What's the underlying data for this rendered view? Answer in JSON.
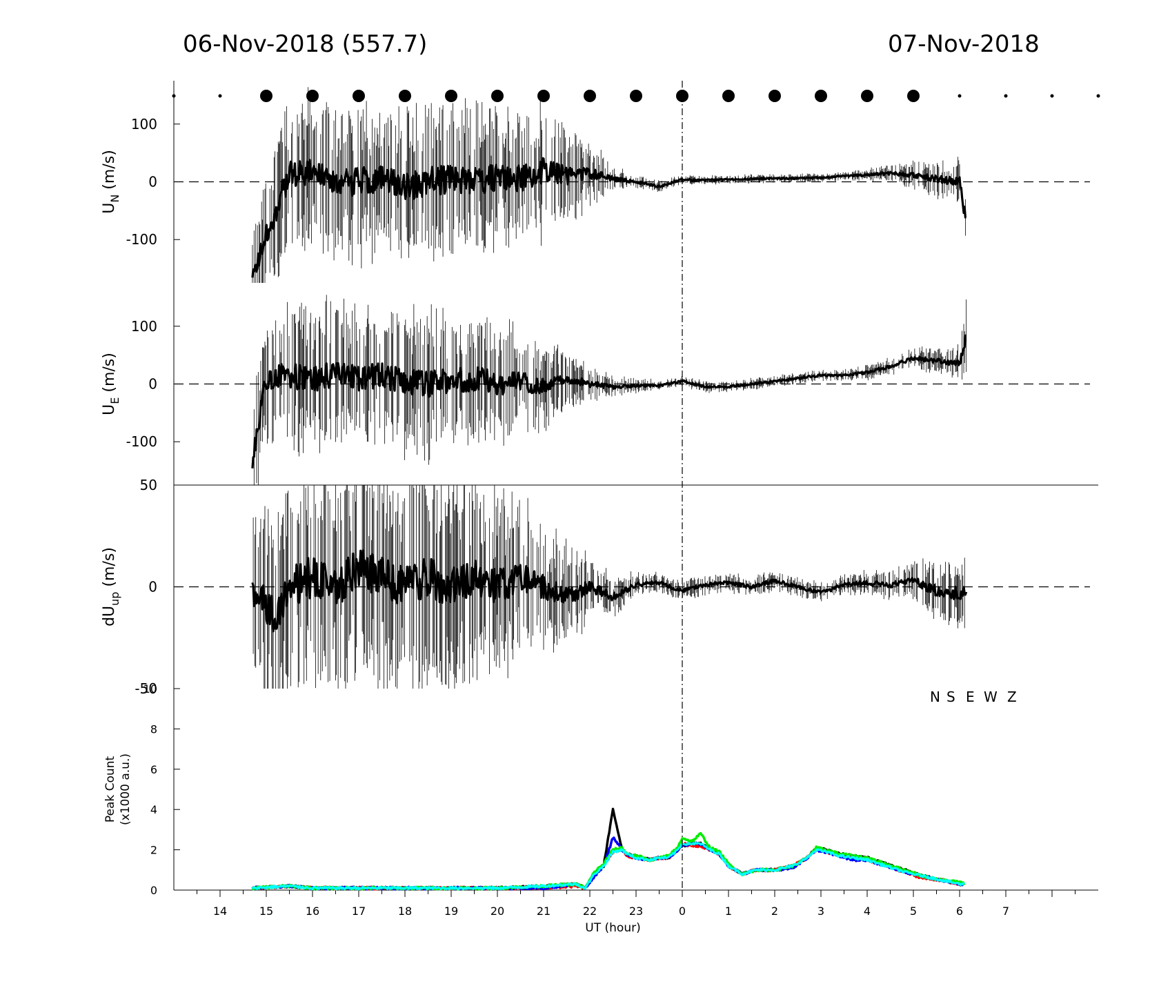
{
  "header": {
    "left_date": "06-Nov-2018 (557.7)",
    "right_date": "07-Nov-2018"
  },
  "chart_data": [
    {
      "type": "line",
      "panel": "un",
      "ylabel": "U",
      "ylabel_sub": "N",
      "ylabel_unit": " (m/s)",
      "yticks": [
        100,
        0,
        -100
      ],
      "ylim": [
        -175,
        175
      ],
      "x_range_hours": [
        -11,
        9
      ],
      "data_x_range": [
        -9.3,
        6.15
      ],
      "zero_line": true,
      "series": [
        {
          "x": [
            -9.3,
            -9.0,
            -8.5,
            -8.0,
            -7.5,
            -7.0,
            -6.5,
            -6.0,
            -5.5,
            -5.0,
            -4.5,
            -4.0,
            -3.5,
            -3.0,
            -2.5,
            -2.0,
            -1.5,
            -1.0,
            -0.5,
            0.0,
            0.5,
            1.0,
            1.5,
            2.0,
            2.5,
            3.0,
            3.5,
            4.0,
            4.5,
            5.0,
            5.5,
            6.0,
            6.15
          ],
          "y": [
            -170,
            -90,
            10,
            15,
            -5,
            0,
            5,
            -10,
            0,
            5,
            0,
            10,
            5,
            20,
            10,
            15,
            5,
            0,
            -8,
            4,
            3,
            4,
            5,
            6,
            6,
            7,
            10,
            12,
            15,
            12,
            5,
            0,
            -75
          ],
          "error_amplitude": [
            60,
            90,
            110,
            110,
            110,
            110,
            110,
            110,
            110,
            110,
            110,
            110,
            105,
            95,
            75,
            45,
            20,
            10,
            8,
            6,
            6,
            6,
            6,
            6,
            6,
            6,
            6,
            8,
            12,
            20,
            25,
            35,
            60
          ]
        }
      ],
      "markers": {
        "hours": [
          -11,
          -10,
          -9,
          -8,
          -7,
          -6,
          -5,
          -4,
          -3,
          -2,
          -1,
          0,
          1,
          2,
          3,
          4,
          5,
          6,
          7,
          8,
          9
        ],
        "size": [
          "small",
          "small",
          "large",
          "large",
          "large",
          "large",
          "large",
          "large",
          "large",
          "large",
          "large",
          "large",
          "large",
          "large",
          "large",
          "large",
          "large",
          "small",
          "small",
          "small",
          "small"
        ]
      }
    },
    {
      "type": "line",
      "panel": "ue",
      "ylabel": "U",
      "ylabel_sub": "E",
      "ylabel_unit": " (m/s)",
      "yticks": [
        100,
        0,
        -100
      ],
      "ylim": [
        -175,
        175
      ],
      "x_range_hours": [
        -11,
        9
      ],
      "data_x_range": [
        -9.3,
        6.15
      ],
      "zero_line": true,
      "series": [
        {
          "x": [
            -9.3,
            -9.0,
            -8.5,
            -8.0,
            -7.5,
            -7.0,
            -6.5,
            -6.0,
            -5.5,
            -5.0,
            -4.5,
            -4.0,
            -3.5,
            -3.0,
            -2.5,
            -2.0,
            -1.5,
            -1.0,
            -0.5,
            0.0,
            0.5,
            1.0,
            1.5,
            2.0,
            2.5,
            3.0,
            3.5,
            4.0,
            4.5,
            5.0,
            5.5,
            6.0,
            6.15
          ],
          "y": [
            -130,
            10,
            15,
            5,
            20,
            10,
            15,
            5,
            0,
            5,
            10,
            0,
            5,
            -5,
            10,
            0,
            -5,
            -3,
            -3,
            5,
            -5,
            -5,
            0,
            5,
            10,
            15,
            15,
            20,
            30,
            45,
            40,
            35,
            90
          ],
          "error_amplitude": [
            80,
            90,
            100,
            100,
            100,
            100,
            100,
            100,
            100,
            95,
            95,
            90,
            80,
            60,
            40,
            25,
            15,
            10,
            8,
            8,
            8,
            8,
            8,
            8,
            8,
            8,
            8,
            10,
            12,
            15,
            20,
            25,
            60
          ]
        }
      ]
    },
    {
      "type": "line",
      "panel": "dup",
      "ylabel": "dU",
      "ylabel_sub": "up",
      "ylabel_unit": " (m/s)",
      "yticks": [
        50,
        0,
        -50
      ],
      "ylim": [
        -50,
        50
      ],
      "x_range_hours": [
        -11,
        9
      ],
      "data_x_range": [
        -9.3,
        6.15
      ],
      "zero_line": true,
      "series": [
        {
          "x": [
            -9.3,
            -8.8,
            -8.5,
            -8.0,
            -7.5,
            -7.0,
            -6.5,
            -6.0,
            -5.5,
            -5.0,
            -4.5,
            -4.0,
            -3.5,
            -3.0,
            -2.5,
            -2.0,
            -1.5,
            -1.0,
            -0.5,
            0.0,
            0.5,
            1.0,
            1.5,
            2.0,
            2.5,
            3.0,
            3.5,
            4.0,
            4.5,
            5.0,
            5.5,
            6.0,
            6.15
          ],
          "y": [
            0,
            -15,
            0,
            5,
            0,
            10,
            5,
            0,
            5,
            0,
            5,
            0,
            5,
            0,
            -5,
            0,
            -5,
            1,
            2,
            -2,
            1,
            2,
            0,
            3,
            0,
            -3,
            1,
            2,
            1,
            3,
            -2,
            -3,
            0
          ],
          "error_amplitude": [
            40,
            40,
            45,
            45,
            45,
            45,
            45,
            45,
            45,
            45,
            42,
            38,
            32,
            26,
            20,
            14,
            8,
            5,
            4,
            4,
            4,
            4,
            4,
            4,
            4,
            4,
            4,
            5,
            6,
            8,
            12,
            15,
            20
          ]
        }
      ]
    },
    {
      "type": "line",
      "panel": "peak",
      "ylabel": "Peak Count",
      "ylabel2": "(x1000 a.u.)",
      "xlabel": "UT (hour)",
      "yticks": [
        10,
        8,
        6,
        4,
        2,
        0
      ],
      "ylim": [
        0,
        10
      ],
      "x_range_hours": [
        -11,
        9
      ],
      "xtick_labels": [
        "14",
        "15",
        "16",
        "17",
        "18",
        "19",
        "20",
        "21",
        "22",
        "23",
        "0",
        "1",
        "2",
        "3",
        "4",
        "5",
        "6",
        "7"
      ],
      "xtick_hours": [
        -10,
        -9,
        -8,
        -7,
        -6,
        -5,
        -4,
        -3,
        -2,
        -1,
        0,
        1,
        2,
        3,
        4,
        5,
        6,
        7
      ],
      "legend": [
        "N",
        "S",
        "E",
        "W",
        "Z"
      ],
      "legend_colors": [
        "#000000",
        "#ff0000",
        "#0000ff",
        "#00ee00",
        "#00ffff"
      ],
      "x": [
        -9.3,
        -8.5,
        -8.0,
        -7.0,
        -6.0,
        -5.0,
        -4.0,
        -3.0,
        -2.3,
        -2.1,
        -1.9,
        -1.7,
        -1.5,
        -1.3,
        -1.2,
        -1.0,
        -0.7,
        -0.5,
        -0.3,
        -0.1,
        0.0,
        0.2,
        0.4,
        0.6,
        0.8,
        1.0,
        1.3,
        1.6,
        2.0,
        2.4,
        2.7,
        2.9,
        3.1,
        3.4,
        3.7,
        4.0,
        4.4,
        4.8,
        5.2,
        5.6,
        6.0,
        6.1
      ],
      "series": [
        {
          "name": "N",
          "color": "#000000",
          "y": [
            0.1,
            0.2,
            0.1,
            0.1,
            0.1,
            0.1,
            0.1,
            0.2,
            0.3,
            0.1,
            0.8,
            1.2,
            4.0,
            2.0,
            1.8,
            1.7,
            1.5,
            1.6,
            1.6,
            2.0,
            2.2,
            2.3,
            2.3,
            2.0,
            1.8,
            1.2,
            0.8,
            1.0,
            1.0,
            1.2,
            1.6,
            2.1,
            2.0,
            1.8,
            1.7,
            1.6,
            1.3,
            1.0,
            0.7,
            0.5,
            0.3,
            0.3
          ]
        },
        {
          "name": "S",
          "color": "#ff0000",
          "y": [
            0.1,
            0.2,
            0.1,
            0.1,
            0.1,
            0.1,
            0.1,
            0.1,
            0.2,
            0.1,
            0.8,
            1.2,
            1.9,
            2.0,
            1.7,
            1.6,
            1.5,
            1.6,
            1.6,
            2.0,
            2.3,
            2.2,
            2.2,
            2.0,
            1.8,
            1.2,
            0.8,
            1.0,
            1.0,
            1.2,
            1.6,
            2.0,
            1.9,
            1.7,
            1.6,
            1.5,
            1.2,
            0.9,
            0.6,
            0.5,
            0.3,
            0.3
          ]
        },
        {
          "name": "E",
          "color": "#0000ff",
          "y": [
            0.1,
            0.2,
            0.1,
            0.1,
            0.1,
            0.1,
            0.1,
            0.1,
            0.3,
            0.1,
            0.7,
            1.2,
            2.6,
            2.0,
            1.8,
            1.6,
            1.5,
            1.6,
            1.6,
            2.0,
            2.2,
            2.3,
            2.3,
            2.0,
            1.8,
            1.2,
            0.8,
            1.0,
            1.0,
            1.1,
            1.6,
            2.0,
            1.9,
            1.7,
            1.5,
            1.5,
            1.2,
            0.9,
            0.7,
            0.5,
            0.3,
            0.3
          ]
        },
        {
          "name": "W",
          "color": "#00ee00",
          "y": [
            0.1,
            0.2,
            0.1,
            0.1,
            0.1,
            0.1,
            0.1,
            0.2,
            0.3,
            0.1,
            0.9,
            1.3,
            2.0,
            2.1,
            1.8,
            1.7,
            1.5,
            1.6,
            1.7,
            2.1,
            2.6,
            2.4,
            2.8,
            2.1,
            1.9,
            1.3,
            0.8,
            1.0,
            1.0,
            1.2,
            1.6,
            2.1,
            2.0,
            1.8,
            1.7,
            1.6,
            1.3,
            1.0,
            0.7,
            0.5,
            0.4,
            0.3
          ]
        },
        {
          "name": "Z",
          "color": "#00ffff",
          "y": [
            0.1,
            0.2,
            0.1,
            0.1,
            0.1,
            0.1,
            0.1,
            0.2,
            0.3,
            0.1,
            0.8,
            1.2,
            1.9,
            2.0,
            1.8,
            1.6,
            1.5,
            1.6,
            1.6,
            2.0,
            2.3,
            2.3,
            2.3,
            2.0,
            1.8,
            1.2,
            0.8,
            1.0,
            1.0,
            1.2,
            1.6,
            2.0,
            1.9,
            1.7,
            1.6,
            1.5,
            1.2,
            0.9,
            0.7,
            0.5,
            0.3,
            0.3
          ]
        }
      ]
    }
  ]
}
